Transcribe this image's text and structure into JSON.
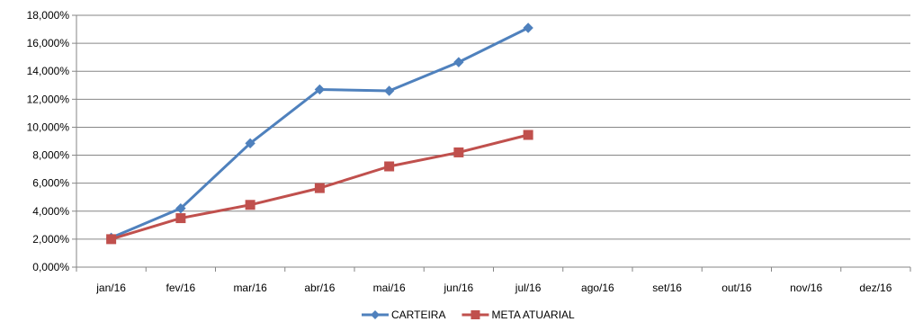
{
  "chart_data": {
    "type": "line",
    "categories": [
      "jan/16",
      "fev/16",
      "mar/16",
      "abr/16",
      "mai/16",
      "jun/16",
      "jul/16",
      "ago/16",
      "set/16",
      "out/16",
      "nov/16",
      "dez/16"
    ],
    "ylim": [
      0,
      18
    ],
    "yticks": [
      0,
      2,
      4,
      6,
      8,
      10,
      12,
      14,
      16,
      18
    ],
    "ytick_labels": [
      "0,000%",
      "2,000%",
      "4,000%",
      "6,000%",
      "8,000%",
      "10,000%",
      "12,000%",
      "14,000%",
      "16,000%",
      "18,000%"
    ],
    "grid": true,
    "legend_position": "bottom",
    "series": [
      {
        "name": "CARTEIRA",
        "color": "#4F81BD",
        "marker": "diamond",
        "values": [
          2.1,
          4.2,
          8.85,
          12.7,
          12.6,
          14.65,
          17.1,
          null,
          null,
          null,
          null,
          null
        ]
      },
      {
        "name": "META ATUARIAL",
        "color": "#C0504D",
        "marker": "square",
        "values": [
          2.0,
          3.5,
          4.45,
          5.65,
          7.2,
          8.2,
          9.45,
          null,
          null,
          null,
          null,
          null
        ]
      }
    ]
  }
}
